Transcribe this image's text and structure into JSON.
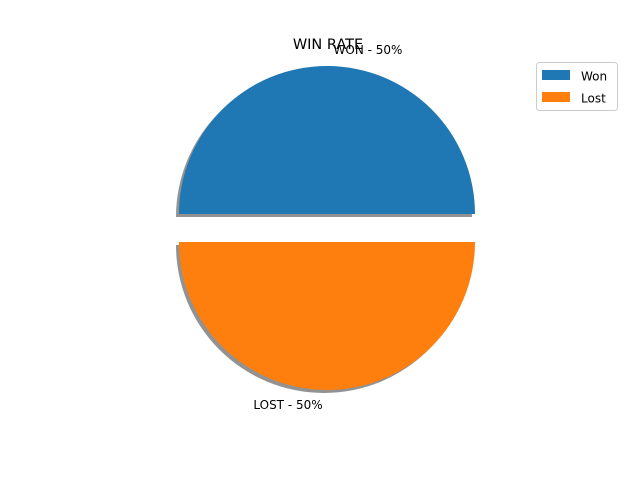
{
  "chart_data": {
    "type": "pie",
    "title": "WIN RATE",
    "slices": [
      {
        "label": "WON",
        "legend": "Won",
        "value": 50,
        "pct_label": "WON - 50%",
        "color": "#1f77b4"
      },
      {
        "label": "LOST",
        "legend": "Lost",
        "value": 50,
        "pct_label": "LOST - 50%",
        "color": "#ff7f0e"
      }
    ],
    "exploded": true,
    "shadow": true,
    "shadow_color": "#7f7f7f",
    "legend": {
      "position": "top-right",
      "entries": [
        "Won",
        "Lost"
      ]
    }
  }
}
